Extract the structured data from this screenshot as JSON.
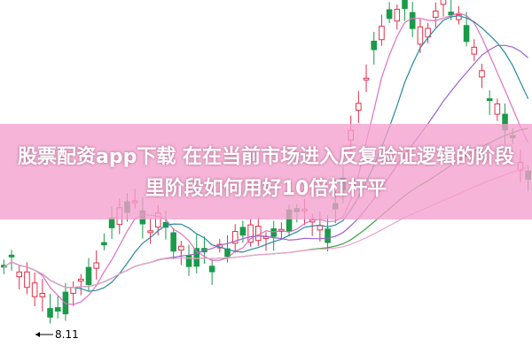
{
  "header": {
    "title": "股票配资app下载 在在当前市场进入反复验证逻辑的阶段里阶段如何用好10倍杠杆平"
  },
  "chart": {
    "low_label": "8.11"
  }
}
